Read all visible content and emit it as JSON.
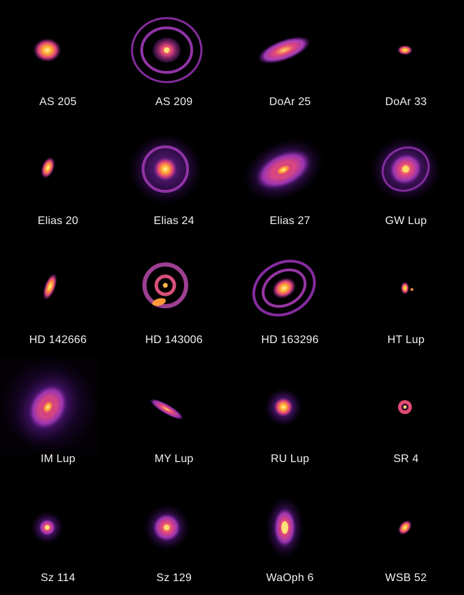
{
  "figure": {
    "disks": [
      {
        "name": "AS 205"
      },
      {
        "name": "AS 209"
      },
      {
        "name": "DoAr 25"
      },
      {
        "name": "DoAr 33"
      },
      {
        "name": "Elias 20"
      },
      {
        "name": "Elias 24"
      },
      {
        "name": "Elias 27"
      },
      {
        "name": "GW Lup"
      },
      {
        "name": "HD 142666"
      },
      {
        "name": "HD 143006"
      },
      {
        "name": "HD 163296"
      },
      {
        "name": "HT Lup"
      },
      {
        "name": "IM Lup"
      },
      {
        "name": "MY Lup"
      },
      {
        "name": "RU Lup"
      },
      {
        "name": "SR 4"
      },
      {
        "name": "Sz 114"
      },
      {
        "name": "Sz 129"
      },
      {
        "name": "WaOph 6"
      },
      {
        "name": "WSB 52"
      }
    ],
    "colors": {
      "background": "#000000",
      "core": "#fff6a8",
      "bright": "#ffb030",
      "mid": "#e0407a",
      "dim": "#8a2ca0",
      "faint": "#3a0f5a",
      "label": "#f2f2f2"
    }
  }
}
